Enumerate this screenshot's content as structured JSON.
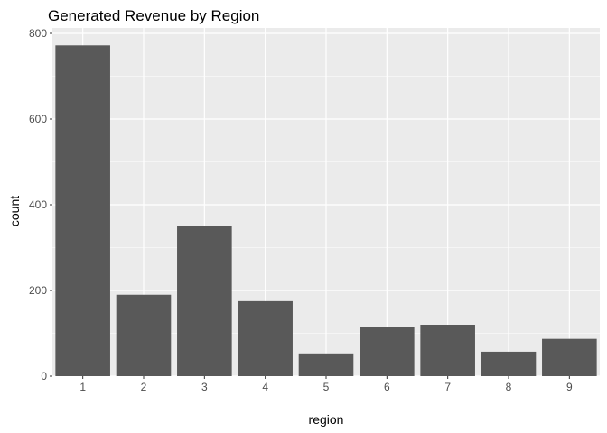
{
  "chart_data": {
    "type": "bar",
    "title": "Generated Revenue by Region",
    "xlabel": "region",
    "ylabel": "count",
    "categories": [
      "1",
      "2",
      "3",
      "4",
      "5",
      "6",
      "7",
      "8",
      "9"
    ],
    "values": [
      772,
      190,
      350,
      175,
      53,
      115,
      120,
      57,
      87
    ],
    "ylim": [
      0,
      810
    ],
    "yticks": [
      0,
      200,
      400,
      600,
      800
    ],
    "yticks_minor": [
      100,
      300,
      500,
      700
    ],
    "grid": true,
    "legend": "none",
    "colors": {
      "panel": "#ebebeb",
      "grid": "#ffffff",
      "bar": "#595959",
      "tick": "#333333"
    }
  }
}
